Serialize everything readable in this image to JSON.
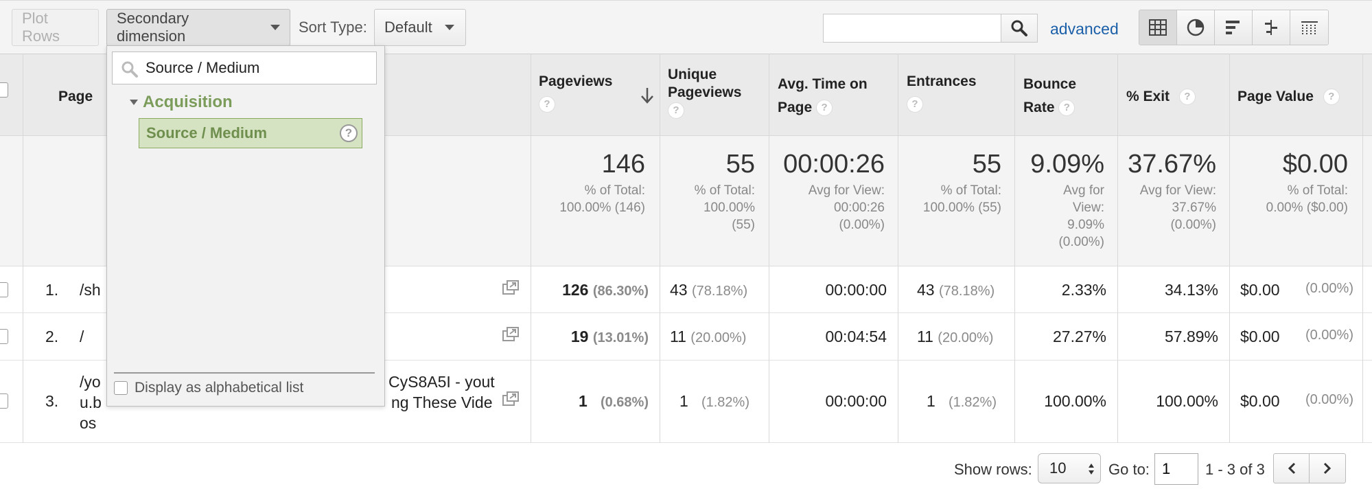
{
  "toolbar": {
    "plot_rows": "Plot Rows",
    "secondary_dimension": "Secondary dimension",
    "sort_type_label": "Sort Type:",
    "sort_type_value": "Default",
    "search_value": "",
    "advanced": "advanced",
    "view_icons": [
      "table-view-icon",
      "pie-view-icon",
      "performance-view-icon",
      "comparison-view-icon",
      "pivot-view-icon"
    ]
  },
  "dropdown": {
    "search_value": "Source / Medium",
    "group": "Acquisition",
    "item": "Source / Medium",
    "alpha_label": "Display as alphabetical list"
  },
  "table": {
    "headers": {
      "page": "Page",
      "pageviews": "Pageviews",
      "unique_pageviews": "Unique Pageviews",
      "avg_time": "Avg. Time on Page",
      "entrances": "Entrances",
      "bounce_rate": "Bounce Rate",
      "exit": "% Exit",
      "page_value": "Page Value"
    },
    "totals": {
      "pageviews": {
        "value": "146",
        "sub": [
          "% of Total:",
          "100.00% (146)"
        ]
      },
      "unique_pageviews": {
        "value": "55",
        "sub": [
          "% of Total:",
          "100.00%",
          "(55)"
        ]
      },
      "avg_time": {
        "value": "00:00:26",
        "sub": [
          "Avg for View:",
          "00:00:26",
          "(0.00%)"
        ]
      },
      "entrances": {
        "value": "55",
        "sub": [
          "% of Total:",
          "100.00% (55)"
        ]
      },
      "bounce_rate": {
        "value": "9.09%",
        "sub": [
          "Avg for",
          "View:",
          "9.09%",
          "(0.00%)"
        ]
      },
      "exit": {
        "value": "37.67%",
        "sub": [
          "Avg for View:",
          "37.67%",
          "(0.00%)"
        ]
      },
      "page_value": {
        "value": "$0.00",
        "sub": [
          "% of Total:",
          "0.00% ($0.00)"
        ]
      }
    },
    "rows": [
      {
        "index": "1.",
        "page": "/sh",
        "page_tail": "",
        "pageviews": "126",
        "pageviews_pct": "(86.30%)",
        "unique": "43",
        "unique_pct": "(78.18%)",
        "avg_time": "00:00:00",
        "entrances": "43",
        "entrances_pct": "(78.18%)",
        "bounce": "2.33%",
        "exit": "34.13%",
        "value": "$0.00",
        "value_pct": "(0.00%)"
      },
      {
        "index": "2.",
        "page": "/",
        "page_tail": "",
        "pageviews": "19",
        "pageviews_pct": "(13.01%)",
        "unique": "11",
        "unique_pct": "(20.00%)",
        "avg_time": "00:04:54",
        "entrances": "11",
        "entrances_pct": "(20.00%)",
        "bounce": "27.27%",
        "exit": "57.89%",
        "value": "$0.00",
        "value_pct": "(0.00%)"
      },
      {
        "index": "3.",
        "page_lines": [
          "/yo",
          "u.b",
          "os"
        ],
        "page_tail_lines": [
          "CyS8A5I - yout",
          "ng These Vide"
        ],
        "pageviews": "1",
        "pageviews_pct": "(0.68%)",
        "unique": "1",
        "unique_pct": "(1.82%)",
        "avg_time": "00:00:00",
        "entrances": "1",
        "entrances_pct": "(1.82%)",
        "bounce": "100.00%",
        "exit": "100.00%",
        "value": "$0.00",
        "value_pct": "(0.00%)"
      }
    ]
  },
  "footer": {
    "show_rows_label": "Show rows:",
    "show_rows_value": "10",
    "goto_label": "Go to:",
    "goto_value": "1",
    "range": "1 - 3 of 3"
  }
}
